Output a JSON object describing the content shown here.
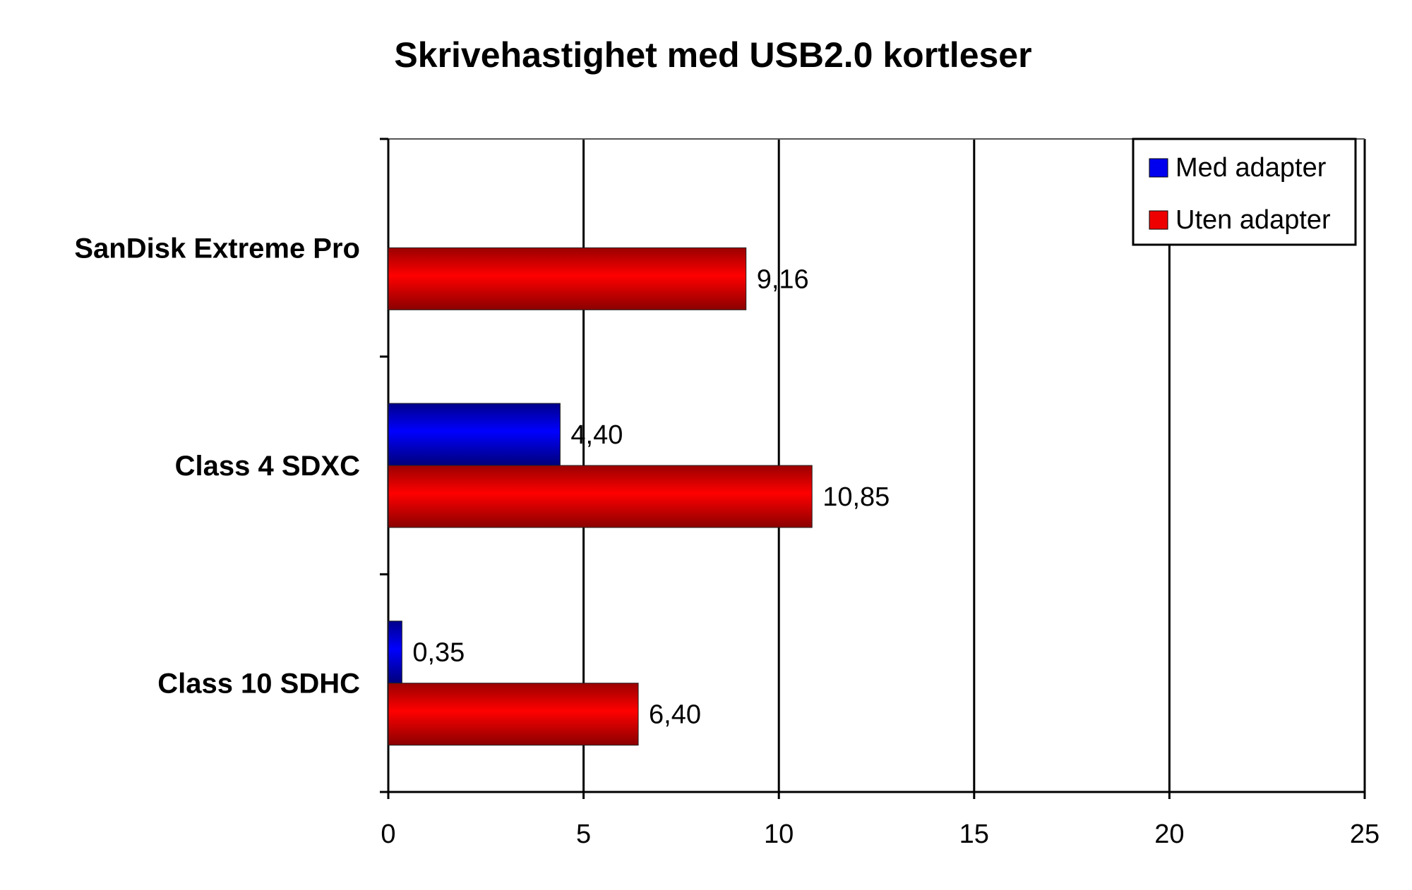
{
  "chart_data": {
    "type": "bar",
    "orientation": "horizontal",
    "title": "Skrivehastighet med USB2.0 kortleser",
    "xlabel": "",
    "ylabel": "",
    "categories": [
      "SanDisk Extreme Pro",
      "Class 4 SDXC",
      "Class 10 SDHC"
    ],
    "series": [
      {
        "name": "Med adapter",
        "color": "#0000ee",
        "values": [
          null,
          4.4,
          0.35
        ],
        "labels": [
          "",
          "4,40",
          "0,35"
        ]
      },
      {
        "name": "Uten adapter",
        "color": "#ee0000",
        "values": [
          9.16,
          10.85,
          6.4
        ],
        "labels": [
          "9,16",
          "10,85",
          "6,40"
        ]
      }
    ],
    "xlim": [
      0,
      25
    ],
    "xticks": [
      0,
      5,
      10,
      15,
      20,
      25
    ],
    "xtick_labels": [
      "0",
      "5",
      "10",
      "15",
      "20",
      "25"
    ],
    "grid": "vertical",
    "legend_position": "top-right"
  }
}
